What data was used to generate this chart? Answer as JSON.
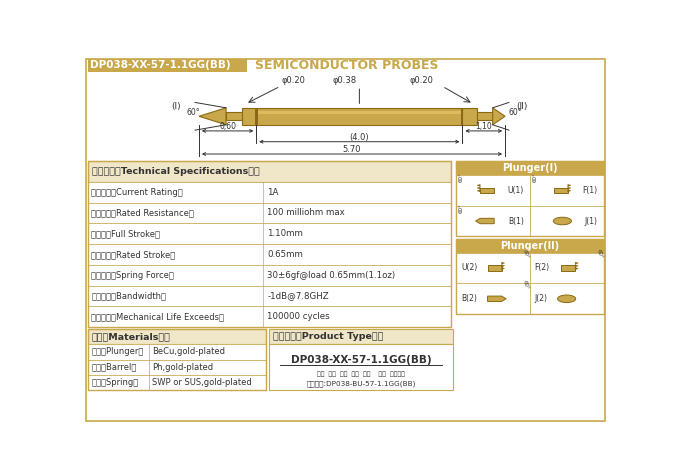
{
  "title_box_text": "DP038-XX-57-1.1GG(BB)",
  "title_box_color": "#C8A84B",
  "title_right_text": "SEMICONDUCTOR PROBES",
  "bg_color": "#FFFFFF",
  "border_color": "#C8A84B",
  "probe_gold": "#C8A84B",
  "probe_dark": "#8B6914",
  "probe_light": "#E8C46A",
  "dim_color": "#333333",
  "specs": [
    [
      "技术要求（Technical Specifications）：",
      ""
    ],
    [
      "额定电流（Current Rating）",
      "1A"
    ],
    [
      "额定电阻（Rated Resistance）",
      "100 milliohm max"
    ],
    [
      "满行程（Full Stroke）",
      "1.10mm"
    ],
    [
      "额定行程（Rated Stroke）",
      "0.65mm"
    ],
    [
      "额定弹力（Spring Force）",
      "30±6gf@load 0.65mm(1.1oz)"
    ],
    [
      "频率带宽（Bandwidth）",
      "-1dB@7.8GHZ"
    ],
    [
      "测试寿命（Mechanical Life Exceeds）",
      "100000 cycles"
    ]
  ],
  "materials": [
    [
      "材质（Materials）：",
      ""
    ],
    [
      "针头（Plunger）",
      "BeCu,gold-plated"
    ],
    [
      "针管（Barrel）",
      "Ph,gold-plated"
    ],
    [
      "弹簧（Spring）",
      "SWP or SUS,gold-plated"
    ]
  ],
  "product_type_title": "成品型号（Product Type）：",
  "product_type_main": "DP038-XX-57-1.1GG(BB)",
  "product_type_sub": "系列  规格  头型  总长  弹力    镀金  针头根数",
  "product_type_example": "订购举例:DP038-BU-57-1.1GG(BB)",
  "plunger1_label": "Plunger(I)",
  "plunger2_label": "Plunger(II)",
  "plunger1_types": [
    "U(1)",
    "F(1)",
    "B(1)",
    "J(1)"
  ],
  "plunger2_types": [
    "U(2)",
    "F(2)",
    "B(2)",
    "J(2)"
  ]
}
